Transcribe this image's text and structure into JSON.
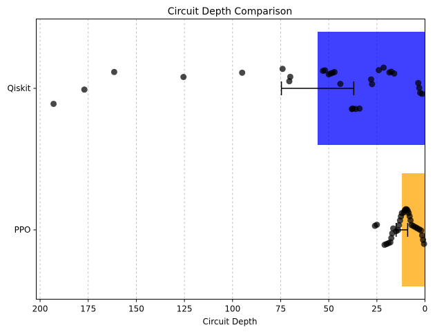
{
  "chart_data": {
    "type": "bar",
    "orientation": "horizontal",
    "title": "Circuit Depth Comparison",
    "xlabel": "Circuit Depth",
    "ylabel": "",
    "x_inverted": true,
    "xlim": [
      202,
      0
    ],
    "x_ticks": [
      200,
      175,
      150,
      125,
      100,
      75,
      50,
      25,
      0
    ],
    "grid": "x-dashed",
    "categories": [
      "Qiskit",
      "PPO"
    ],
    "bars": [
      {
        "category": "Qiskit",
        "value": 55.8,
        "color": "#0000ff",
        "error": 18.8
      },
      {
        "category": "PPO",
        "value": 12.0,
        "color": "#ffa500",
        "error": 3.0
      }
    ],
    "points": [
      {
        "category": "Qiskit",
        "values": [
          193,
          177,
          161.5,
          125.5,
          95,
          74,
          70.5,
          70,
          53,
          52,
          50,
          49,
          48,
          47,
          44,
          38,
          37.5,
          36,
          34,
          28,
          27.5,
          24,
          21.5,
          18.5,
          17.5,
          16,
          3.5,
          3,
          2.5,
          1.5
        ]
      },
      {
        "category": "PPO",
        "values": [
          26,
          25,
          21,
          20,
          19,
          18,
          17.5,
          17,
          16.5,
          15,
          14,
          13.5,
          13,
          12.5,
          12,
          11,
          10.5,
          10,
          9.5,
          9,
          8.5,
          8,
          7.5,
          7,
          6,
          5,
          4,
          3,
          2,
          1.5,
          1,
          0.5
        ]
      }
    ]
  }
}
